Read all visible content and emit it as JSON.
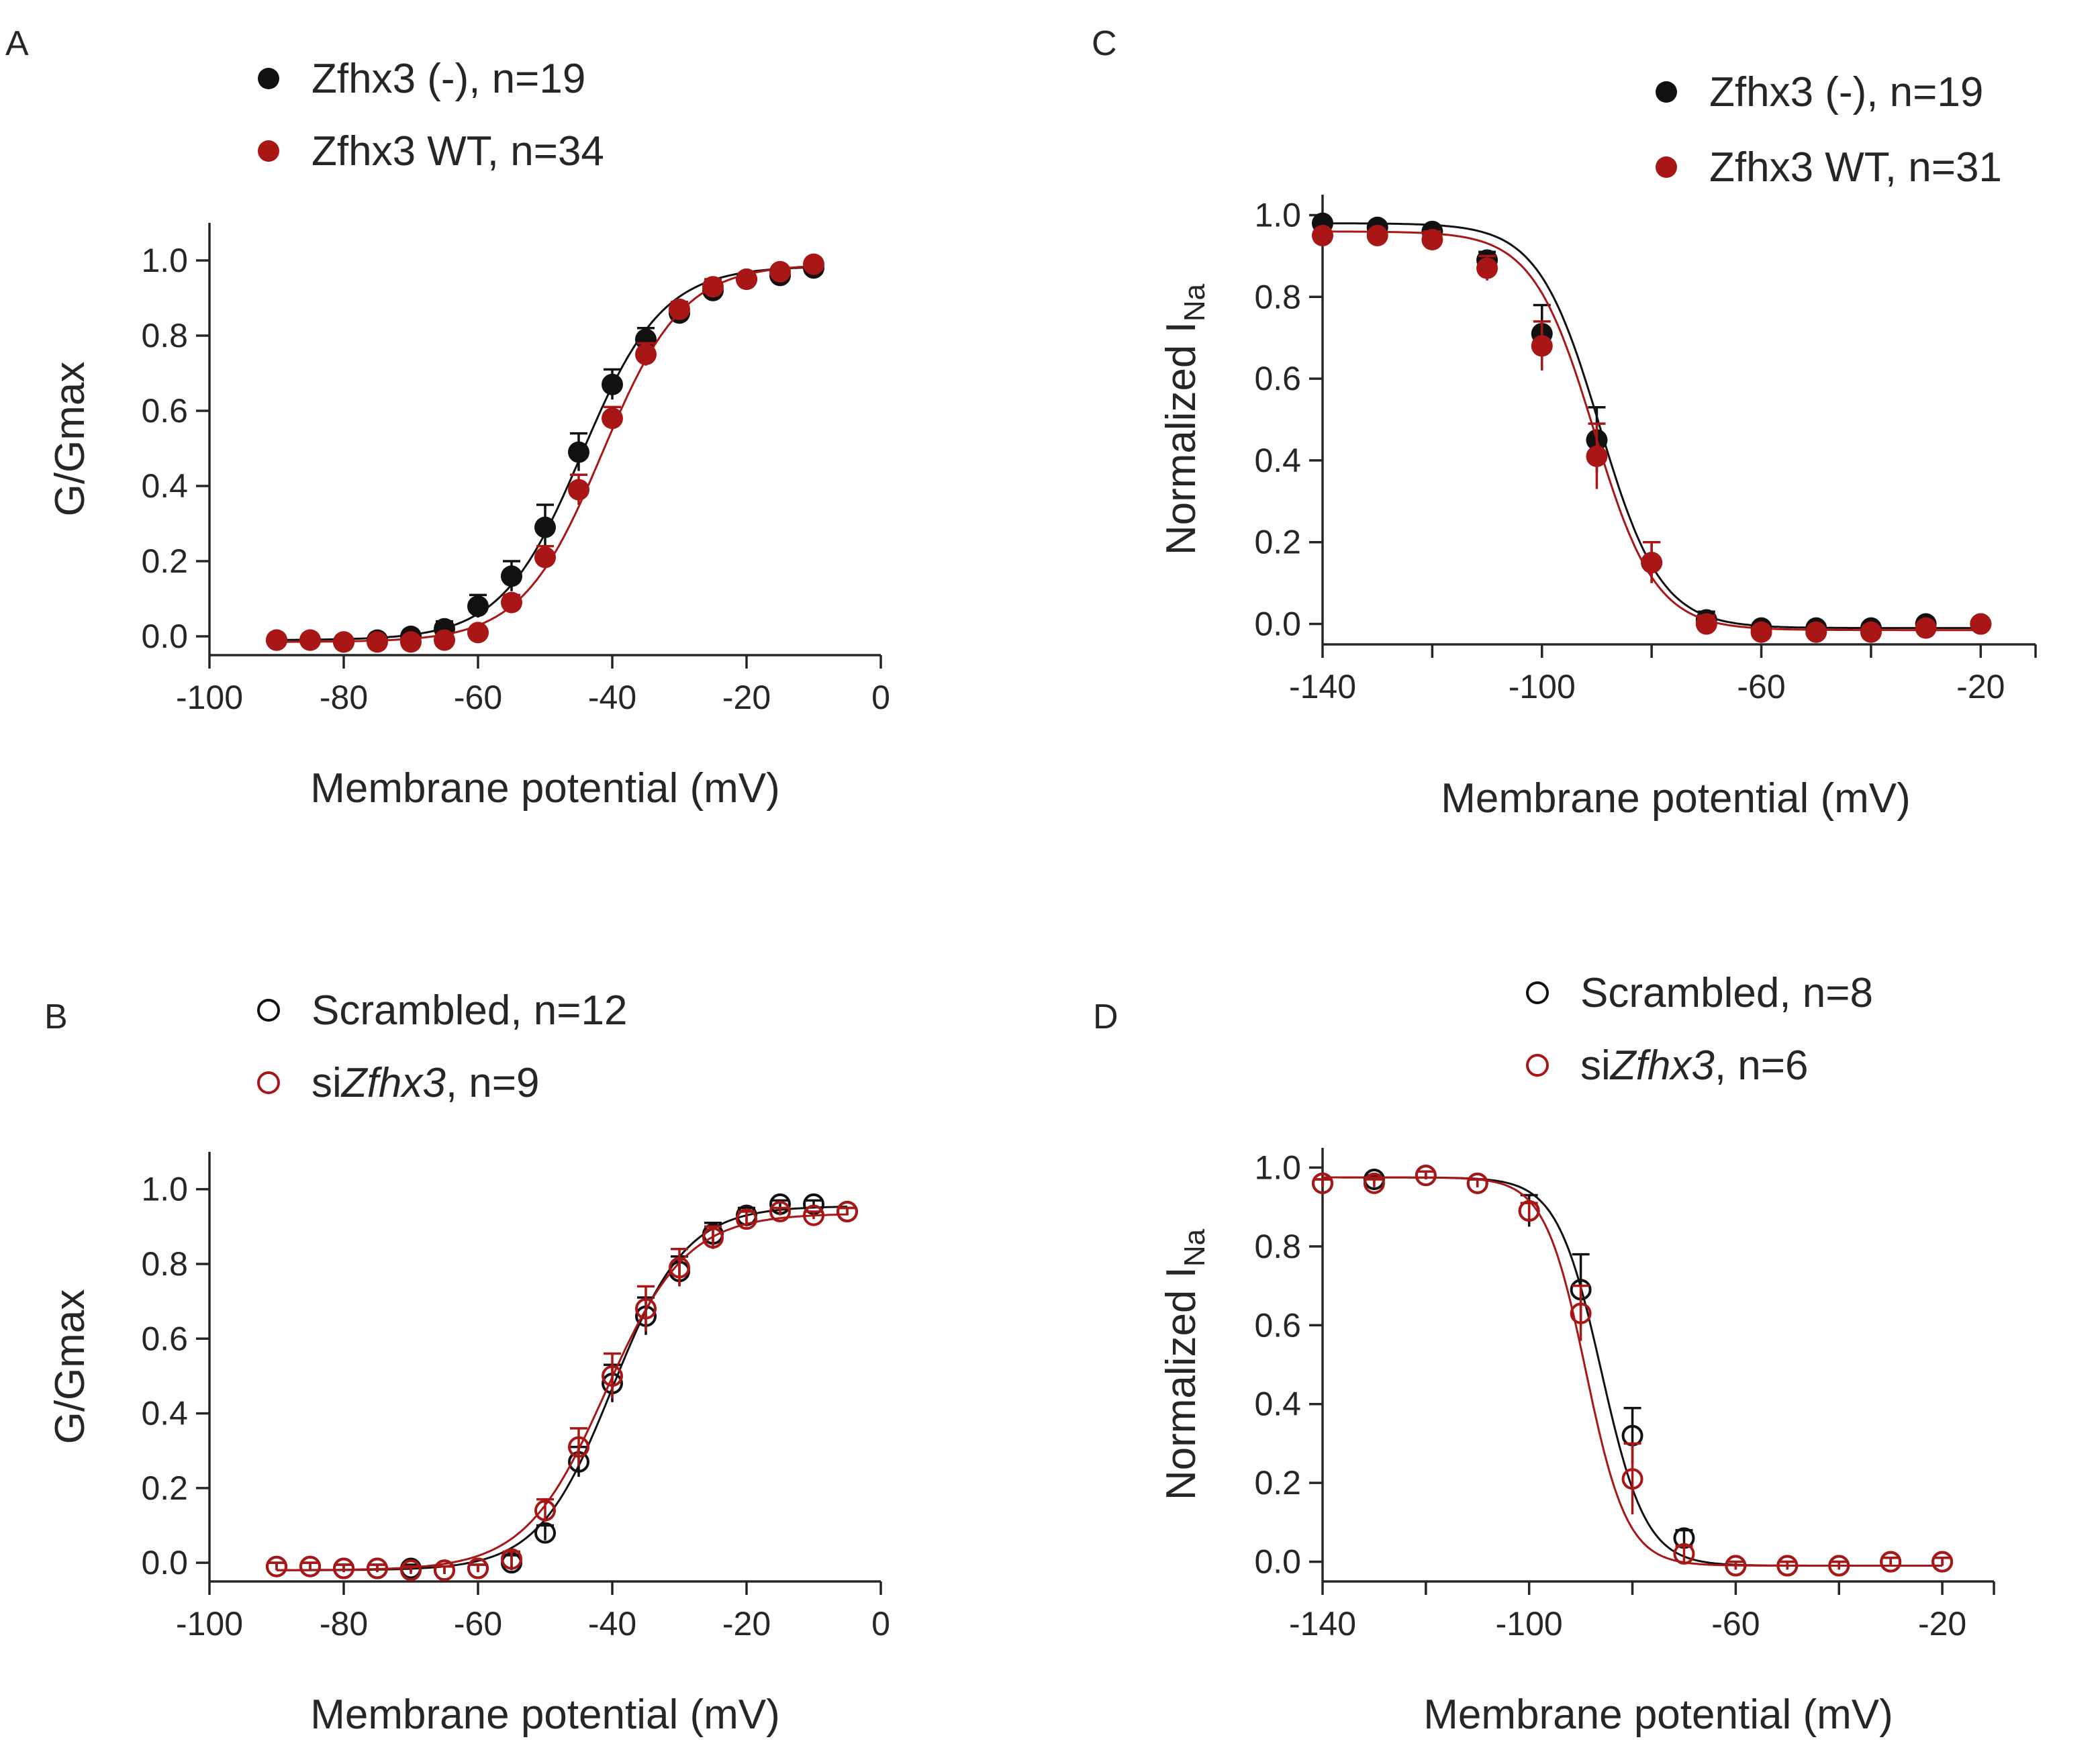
{
  "colors": {
    "black": "#111111",
    "red": "#a81616",
    "axis": "#262626"
  },
  "chart_data": [
    {
      "id": "A",
      "panel_label": "A",
      "type": "scatter",
      "marker_style": "filled",
      "fit": "boltzmann_activation",
      "xlabel": "Membrane potential (mV)",
      "ylabel": "G/Gmax",
      "ylabel_sub": "",
      "xlim": [
        -100,
        0
      ],
      "ylim": [
        -0.05,
        1.1
      ],
      "xticks": [
        -100,
        -80,
        -60,
        -40,
        -20,
        0
      ],
      "xtick_labels": [
        "-100",
        "-80",
        "-60",
        "-40",
        "-20",
        "0"
      ],
      "yticks": [
        0,
        0.2,
        0.4,
        0.6,
        0.8,
        1.0
      ],
      "ytick_labels": [
        "0.0",
        "0.2",
        "0.4",
        "0.6",
        "0.8",
        "1.0"
      ],
      "series": [
        {
          "name": "Zfhx3 (-), n=19",
          "label_parts": [
            {
              "text": "Zfhx3 (-), n=19",
              "italic": false
            }
          ],
          "color": "#111111",
          "fit_params": {
            "v_half": -44.5,
            "k": 6.0,
            "top": 0.985,
            "bottom": -0.01
          },
          "x": [
            -90,
            -85,
            -80,
            -75,
            -70,
            -65,
            -60,
            -55,
            -50,
            -45,
            -40,
            -35,
            -30,
            -25,
            -20,
            -15,
            -10
          ],
          "y": [
            -0.01,
            -0.01,
            -0.015,
            -0.01,
            0.0,
            0.02,
            0.08,
            0.16,
            0.29,
            0.49,
            0.67,
            0.79,
            0.86,
            0.92,
            0.95,
            0.96,
            0.98
          ],
          "err": [
            0.01,
            0.01,
            0.01,
            0.01,
            0.01,
            0.02,
            0.03,
            0.04,
            0.06,
            0.05,
            0.04,
            0.03,
            0.02,
            0.02,
            0.01,
            0.01,
            0.01
          ]
        },
        {
          "name": "Zfhx3 WT, n=34",
          "label_parts": [
            {
              "text": "Zfhx3 WT, n=34",
              "italic": false
            }
          ],
          "color": "#a81616",
          "fit_params": {
            "v_half": -41.5,
            "k": 6.0,
            "top": 0.99,
            "bottom": -0.015
          },
          "x": [
            -90,
            -85,
            -80,
            -75,
            -70,
            -65,
            -60,
            -55,
            -50,
            -45,
            -40,
            -35,
            -30,
            -25,
            -20,
            -15,
            -10
          ],
          "y": [
            -0.01,
            -0.01,
            -0.015,
            -0.015,
            -0.015,
            -0.01,
            0.01,
            0.09,
            0.21,
            0.39,
            0.58,
            0.75,
            0.87,
            0.93,
            0.95,
            0.97,
            0.99
          ],
          "err": [
            0.01,
            0.01,
            0.01,
            0.01,
            0.01,
            0.01,
            0.01,
            0.02,
            0.03,
            0.04,
            0.03,
            0.03,
            0.02,
            0.02,
            0.01,
            0.01,
            0.01
          ]
        }
      ]
    },
    {
      "id": "B",
      "panel_label": "B",
      "type": "scatter",
      "marker_style": "open",
      "fit": "boltzmann_activation",
      "xlabel": "Membrane potential (mV)",
      "ylabel": "G/Gmax",
      "ylabel_sub": "",
      "xlim": [
        -100,
        0
      ],
      "ylim": [
        -0.05,
        1.1
      ],
      "xticks": [
        -100,
        -80,
        -60,
        -40,
        -20,
        0
      ],
      "xtick_labels": [
        "-100",
        "-80",
        "-60",
        "-40",
        "-20",
        "0"
      ],
      "yticks": [
        0,
        0.2,
        0.4,
        0.6,
        0.8,
        1.0
      ],
      "ytick_labels": [
        "0.0",
        "0.2",
        "0.4",
        "0.6",
        "0.8",
        "1.0"
      ],
      "series": [
        {
          "name": "Scrambled, n=12",
          "label_parts": [
            {
              "text": "Scrambled, n=12",
              "italic": false
            }
          ],
          "color": "#111111",
          "fit_params": {
            "v_half": -40.0,
            "k": 5.5,
            "top": 0.955,
            "bottom": -0.02
          },
          "x": [
            -90,
            -85,
            -80,
            -75,
            -70,
            -65,
            -60,
            -55,
            -50,
            -45,
            -40,
            -35,
            -30,
            -25,
            -20,
            -15,
            -10,
            -5
          ],
          "y": [
            -0.01,
            -0.01,
            -0.015,
            -0.015,
            -0.015,
            -0.02,
            -0.015,
            0.0,
            0.08,
            0.27,
            0.48,
            0.66,
            0.78,
            0.88,
            0.93,
            0.96,
            0.96,
            0.94
          ],
          "err": [
            0.01,
            0.01,
            0.01,
            0.01,
            0.01,
            0.01,
            0.01,
            0.02,
            0.02,
            0.04,
            0.05,
            0.05,
            0.04,
            0.03,
            0.02,
            0.01,
            0.01,
            0.01
          ]
        },
        {
          "name": "siZfhx3, n=9",
          "label_parts": [
            {
              "text": "si",
              "italic": false
            },
            {
              "text": "Zfhx3",
              "italic": true
            },
            {
              "text": ", n=9",
              "italic": false
            }
          ],
          "color": "#a81616",
          "fit_params": {
            "v_half": -41.0,
            "k": 6.0,
            "top": 0.935,
            "bottom": -0.02
          },
          "x": [
            -90,
            -85,
            -80,
            -75,
            -70,
            -65,
            -60,
            -55,
            -50,
            -45,
            -40,
            -35,
            -30,
            -25,
            -20,
            -15,
            -10,
            -5
          ],
          "y": [
            -0.01,
            -0.01,
            -0.015,
            -0.015,
            -0.02,
            -0.02,
            -0.015,
            0.01,
            0.14,
            0.31,
            0.5,
            0.68,
            0.79,
            0.87,
            0.92,
            0.94,
            0.93,
            0.94
          ],
          "err": [
            0.01,
            0.01,
            0.01,
            0.01,
            0.01,
            0.01,
            0.01,
            0.02,
            0.03,
            0.05,
            0.06,
            0.06,
            0.05,
            0.03,
            0.02,
            0.01,
            0.01,
            0.01
          ]
        }
      ]
    },
    {
      "id": "C",
      "panel_label": "C",
      "type": "scatter",
      "marker_style": "filled",
      "fit": "boltzmann_inactivation",
      "xlabel": "Membrane potential (mV)",
      "ylabel": "Normalized I",
      "ylabel_sub": "Na",
      "xlim": [
        -140,
        -10
      ],
      "ylim": [
        -0.05,
        1.05
      ],
      "xticks": [
        -140,
        -120,
        -100,
        -80,
        -60,
        -40,
        -20,
        -10
      ],
      "xtick_labels": [
        "-140",
        "",
        "-100",
        "",
        "-60",
        "",
        "-20",
        ""
      ],
      "yticks": [
        0,
        0.2,
        0.4,
        0.6,
        0.8,
        1.0
      ],
      "ytick_labels": [
        "0.0",
        "0.2",
        "0.4",
        "0.6",
        "0.8",
        "1.0"
      ],
      "series": [
        {
          "name": "Zfhx3 (-), n=19",
          "label_parts": [
            {
              "text": "Zfhx3 (-), n=19",
              "italic": false
            }
          ],
          "color": "#111111",
          "fit_params": {
            "v_half": -89.5,
            "k": 5.6,
            "top": 0.98,
            "bottom": -0.01
          },
          "x": [
            -140,
            -130,
            -120,
            -110,
            -100,
            -90,
            -80,
            -70,
            -60,
            -50,
            -40,
            -30,
            -20
          ],
          "y": [
            0.98,
            0.97,
            0.96,
            0.89,
            0.71,
            0.45,
            0.15,
            0.01,
            -0.01,
            -0.01,
            -0.01,
            0.0,
            0.0
          ],
          "err": [
            0.01,
            0.01,
            0.01,
            0.02,
            0.07,
            0.08,
            0.05,
            0.02,
            0.01,
            0.01,
            0.01,
            0.01,
            0.01
          ]
        },
        {
          "name": "Zfhx3 WT, n=31",
          "label_parts": [
            {
              "text": "Zfhx3 WT, n=31",
              "italic": false
            }
          ],
          "color": "#a81616",
          "fit_params": {
            "v_half": -90.5,
            "k": 5.6,
            "top": 0.96,
            "bottom": -0.015
          },
          "x": [
            -140,
            -130,
            -120,
            -110,
            -100,
            -90,
            -80,
            -70,
            -60,
            -50,
            -40,
            -30,
            -20
          ],
          "y": [
            0.95,
            0.95,
            0.94,
            0.87,
            0.68,
            0.41,
            0.15,
            0.0,
            -0.02,
            -0.02,
            -0.02,
            -0.01,
            0.0
          ],
          "err": [
            0.01,
            0.01,
            0.02,
            0.03,
            0.06,
            0.08,
            0.05,
            0.02,
            0.01,
            0.01,
            0.01,
            0.01,
            0.01
          ]
        }
      ]
    },
    {
      "id": "D",
      "panel_label": "D",
      "type": "scatter",
      "marker_style": "open",
      "fit": "boltzmann_inactivation",
      "xlabel": "Membrane potential (mV)",
      "ylabel": "Normalized I",
      "ylabel_sub": "Na",
      "xlim": [
        -140,
        -10
      ],
      "ylim": [
        -0.05,
        1.05
      ],
      "xticks": [
        -140,
        -120,
        -100,
        -80,
        -60,
        -40,
        -20,
        -10
      ],
      "xtick_labels": [
        "-140",
        "",
        "-100",
        "",
        "-60",
        "",
        "-20",
        ""
      ],
      "yticks": [
        0,
        0.2,
        0.4,
        0.6,
        0.8,
        1.0
      ],
      "ytick_labels": [
        "0.0",
        "0.2",
        "0.4",
        "0.6",
        "0.8",
        "1.0"
      ],
      "series": [
        {
          "name": "Scrambled, n=8",
          "label_parts": [
            {
              "text": "Scrambled, n=8",
              "italic": false
            }
          ],
          "color": "#111111",
          "fit_params": {
            "v_half": -86.0,
            "k": 4.3,
            "top": 0.975,
            "bottom": -0.01
          },
          "x": [
            -140,
            -130,
            -120,
            -110,
            -100,
            -90,
            -80,
            -70,
            -60,
            -50,
            -40,
            -30,
            -20
          ],
          "y": [
            0.96,
            0.97,
            0.98,
            0.96,
            0.89,
            0.69,
            0.32,
            0.06,
            -0.01,
            -0.01,
            -0.01,
            0.0,
            0.0
          ],
          "err": [
            0.01,
            0.01,
            0.01,
            0.01,
            0.04,
            0.09,
            0.07,
            0.02,
            0.01,
            0.01,
            0.01,
            0.01,
            0.01
          ]
        },
        {
          "name": "siZfhx3, n=6",
          "label_parts": [
            {
              "text": "si",
              "italic": false
            },
            {
              "text": "Zfhx3",
              "italic": true
            },
            {
              "text": ", n=6",
              "italic": false
            }
          ],
          "color": "#a81616",
          "fit_params": {
            "v_half": -89.0,
            "k": 4.0,
            "top": 0.975,
            "bottom": -0.01
          },
          "x": [
            -140,
            -130,
            -120,
            -110,
            -100,
            -90,
            -80,
            -70,
            -60,
            -50,
            -40,
            -30,
            -20
          ],
          "y": [
            0.96,
            0.96,
            0.98,
            0.96,
            0.89,
            0.63,
            0.21,
            0.02,
            -0.01,
            -0.01,
            -0.01,
            0.0,
            0.0
          ],
          "err": [
            0.01,
            0.01,
            0.01,
            0.01,
            0.02,
            0.07,
            0.09,
            0.02,
            0.01,
            0.01,
            0.01,
            0.01,
            0.01
          ]
        }
      ]
    }
  ]
}
